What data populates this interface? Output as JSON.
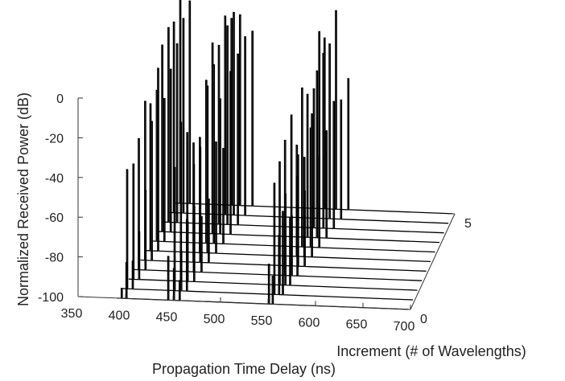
{
  "chart_data": {
    "type": "line",
    "style": "3d-waterfall",
    "xlabel": "Propagation Time Delay (ns)",
    "ylabel": "Increment (# of Wavelengths)",
    "zlabel": "Normalized Received Power (dB)",
    "xlim": [
      350,
      700
    ],
    "ylim": [
      0,
      5
    ],
    "zlim": [
      -100,
      0
    ],
    "xticks": [
      "350",
      "400",
      "450",
      "500",
      "550",
      "600",
      "650",
      "700"
    ],
    "yticks": [
      "0",
      "5"
    ],
    "zticks": [
      "0",
      "-20",
      "-40",
      "-60",
      "-80",
      "-100"
    ],
    "grid": false,
    "line_color": "#000000",
    "series": [
      {
        "increment": 0,
        "delays": [
          396,
          401,
          445,
          451,
          457,
          551,
          555
        ],
        "powers": [
          -95,
          -82,
          -78,
          -84,
          -90,
          -80,
          -86
        ]
      },
      {
        "increment": 0.5,
        "delays": [
          397,
          403,
          447,
          454,
          460,
          552,
          557,
          561
        ],
        "powers": [
          -40,
          -86,
          -38,
          -80,
          -64,
          -44,
          -70,
          -58
        ]
      },
      {
        "increment": 1,
        "delays": [
          399,
          405,
          449,
          456,
          463,
          553,
          559,
          564
        ],
        "powers": [
          -42,
          -76,
          -20,
          -70,
          -62,
          -38,
          -54,
          -66
        ]
      },
      {
        "increment": 1.5,
        "delays": [
          400,
          407,
          451,
          458,
          466,
          554,
          561,
          567
        ],
        "powers": [
          -34,
          -60,
          -30,
          -46,
          -72,
          -32,
          -70,
          -50
        ]
      },
      {
        "increment": 2,
        "delays": [
          402,
          409,
          453,
          460,
          469,
          556,
          563,
          570
        ],
        "powers": [
          -20,
          -30,
          -40,
          -42,
          -68,
          -24,
          -44,
          -62
        ]
      },
      {
        "increment": 2.5,
        "delays": [
          403,
          411,
          455,
          463,
          472,
          557,
          565,
          573
        ],
        "powers": [
          -26,
          -8,
          -42,
          -16,
          -44,
          -44,
          -50,
          -28
        ]
      },
      {
        "increment": 3,
        "delays": [
          405,
          413,
          457,
          465,
          475,
          558,
          567,
          576
        ],
        "powers": [
          -24,
          -28,
          -18,
          -10,
          -52,
          -20,
          -40,
          -54
        ]
      },
      {
        "increment": 3.5,
        "delays": [
          406,
          415,
          459,
          467,
          478,
          559,
          569,
          579
        ],
        "powers": [
          -6,
          -18,
          -4,
          -32,
          -18,
          -28,
          -16,
          -46
        ]
      },
      {
        "increment": 4,
        "delays": [
          408,
          417,
          461,
          470,
          481,
          561,
          571,
          582
        ],
        "powers": [
          -2,
          -10,
          -10,
          0,
          -14,
          -30,
          -12,
          -36
        ]
      },
      {
        "increment": 4.5,
        "delays": [
          409,
          419,
          463,
          472,
          484,
          562,
          573,
          585
        ],
        "powers": [
          -4,
          -2,
          0,
          2,
          -10,
          -6,
          -12,
          -40
        ]
      },
      {
        "increment": 5,
        "delays": [
          411,
          421,
          465,
          474,
          487,
          563,
          575,
          588
        ],
        "powers": [
          10,
          2,
          -6,
          -4,
          -12,
          -14,
          0,
          -34
        ]
      }
    ]
  }
}
